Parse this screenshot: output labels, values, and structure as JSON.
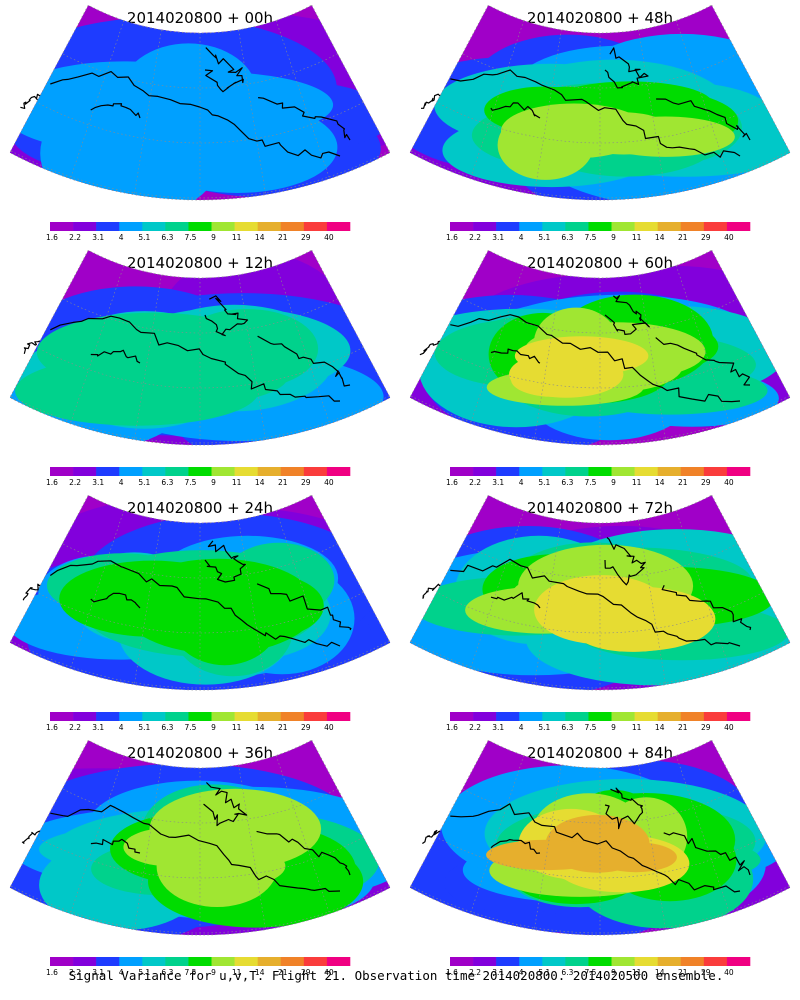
{
  "figure": {
    "caption": "Signal Variance for u,v,T. Flight 21. Observation time 2014020800. 2014020500 ensemble."
  },
  "colorbar": {
    "ticks": [
      "1.6",
      "2.2",
      "3.1",
      "4",
      "5.1",
      "6.3",
      "7.5",
      "9",
      "11",
      "14",
      "21",
      "29",
      "40"
    ],
    "colors": [
      "#a000c8",
      "#8200dc",
      "#1e3cff",
      "#00a0ff",
      "#00c8c8",
      "#00d28c",
      "#00dc00",
      "#a0e632",
      "#e6dc32",
      "#e6af2d",
      "#f08228",
      "#fa3c3c",
      "#f00082"
    ]
  },
  "panels": [
    {
      "title": "2014020800 + 00h",
      "intensity": 0.25
    },
    {
      "title": "2014020800 + 12h",
      "intensity": 0.42
    },
    {
      "title": "2014020800 + 24h",
      "intensity": 0.5
    },
    {
      "title": "2014020800 + 36h",
      "intensity": 0.6
    },
    {
      "title": "2014020800 + 48h",
      "intensity": 0.66
    },
    {
      "title": "2014020800 + 60h",
      "intensity": 0.7
    },
    {
      "title": "2014020800 + 72h",
      "intensity": 0.75
    },
    {
      "title": "2014020800 + 84h",
      "intensity": 0.82
    }
  ],
  "map": {
    "projection": "polar-stereographic sector",
    "region": "Arctic / North America",
    "coastline_color": "#000000",
    "grid_style": "dotted"
  }
}
